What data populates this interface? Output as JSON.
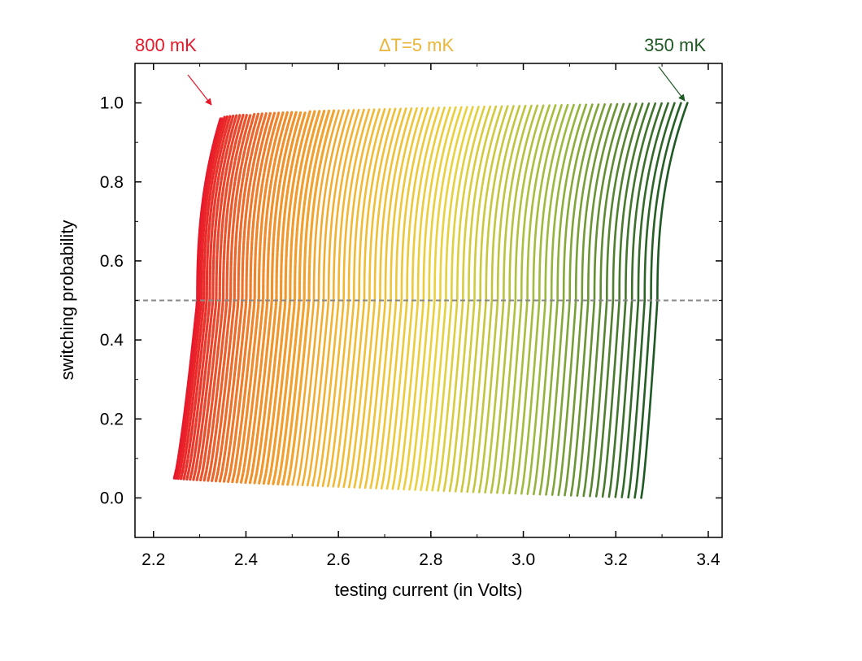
{
  "chart_data": {
    "type": "scatter",
    "title": "",
    "xlabel": "testing current (in Volts)",
    "ylabel": "switching probability",
    "xlim": [
      2.16,
      3.43
    ],
    "ylim": [
      -0.1,
      1.1
    ],
    "xticks": [
      "2.2",
      "2.4",
      "2.6",
      "2.8",
      "3.0",
      "3.2",
      "3.4"
    ],
    "yticks": [
      "0.0",
      "0.2",
      "0.4",
      "0.6",
      "0.8",
      "1.0"
    ],
    "grid": false,
    "legend": "none",
    "reference_line": {
      "y": 0.5,
      "style": "dashed",
      "color": "#888888"
    },
    "series_family": {
      "count": 91,
      "temperature_start_mK": 800,
      "temperature_end_mK": 350,
      "temperature_step_mK": 5,
      "colormap": [
        "#e8182a",
        "#f08a2a",
        "#f2b634",
        "#e9d23e",
        "#9bb93e",
        "#1f5a25"
      ],
      "first_curve": {
        "x_at_p0": 2.245,
        "x_at_p05": 2.295,
        "x_at_p1": 2.345,
        "p_min": 0.05,
        "p_max": 0.96
      },
      "last_curve": {
        "x_at_p0": 3.255,
        "x_at_p05": 3.29,
        "x_at_p1": 3.355,
        "p_min": 0.0,
        "p_max": 1.0
      }
    },
    "annotations": [
      {
        "text": "800 mK",
        "color": "#e8182a",
        "points_to": {
          "x": 2.33,
          "y": 0.99
        }
      },
      {
        "text": "ΔT=5 mK",
        "color": "#e9b63a"
      },
      {
        "text": "350 mK",
        "color": "#1f5a25",
        "points_to": {
          "x": 3.35,
          "y": 1.0
        }
      }
    ]
  }
}
